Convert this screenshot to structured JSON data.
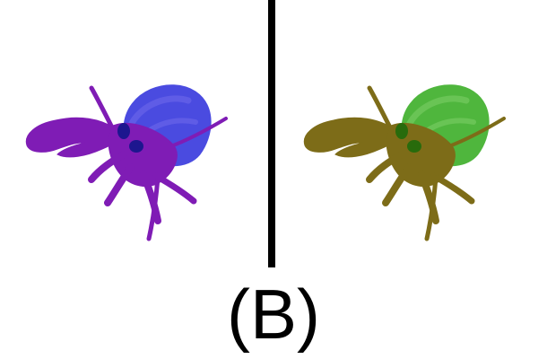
{
  "caption": "(B)",
  "panels": [
    {
      "name": "left",
      "shell_color": "#4a4be0",
      "body_color": "#7f1cb5",
      "eye_color": "#1d168f",
      "shell_stripe": "#6761e8"
    },
    {
      "name": "right",
      "shell_color": "#4fb63d",
      "body_color": "#7d6c18",
      "eye_color": "#286b0c",
      "shell_stripe": "#72c85d"
    }
  ],
  "colors": {
    "background": "#ffffff",
    "divider": "#000000",
    "caption": "#000000"
  }
}
